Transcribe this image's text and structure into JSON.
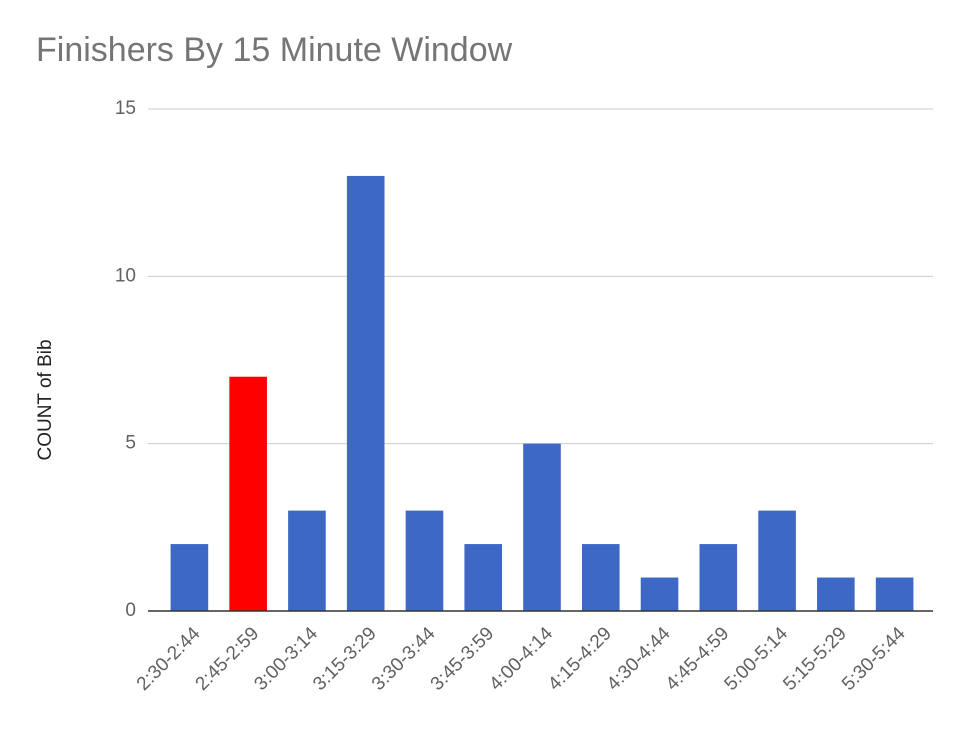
{
  "chart_data": {
    "type": "bar",
    "title": "Finishers By 15 Minute Window",
    "y_label": "COUNT of Bib",
    "categories": [
      "2:30-2:44",
      "2:45-2:59",
      "3:00-3:14",
      "3:15-3:29",
      "3:30-3:44",
      "3:45-3:59",
      "4:00-4:14",
      "4:15-4:29",
      "4:30-4:44",
      "4:45-4:59",
      "5:00-5:14",
      "5:15-5:29",
      "5:30-5:44"
    ],
    "values": [
      2,
      7,
      3,
      13,
      3,
      2,
      5,
      2,
      1,
      2,
      3,
      1,
      1
    ],
    "colors": [
      "#3d68c5",
      "#ff0000",
      "#3d68c5",
      "#3d68c5",
      "#3d68c5",
      "#3d68c5",
      "#3d68c5",
      "#3d68c5",
      "#3d68c5",
      "#3d68c5",
      "#3d68c5",
      "#3d68c5",
      "#3d68c5"
    ],
    "ylim": [
      0,
      15
    ],
    "yticks": [
      0,
      5,
      10,
      15
    ],
    "grid": true
  }
}
